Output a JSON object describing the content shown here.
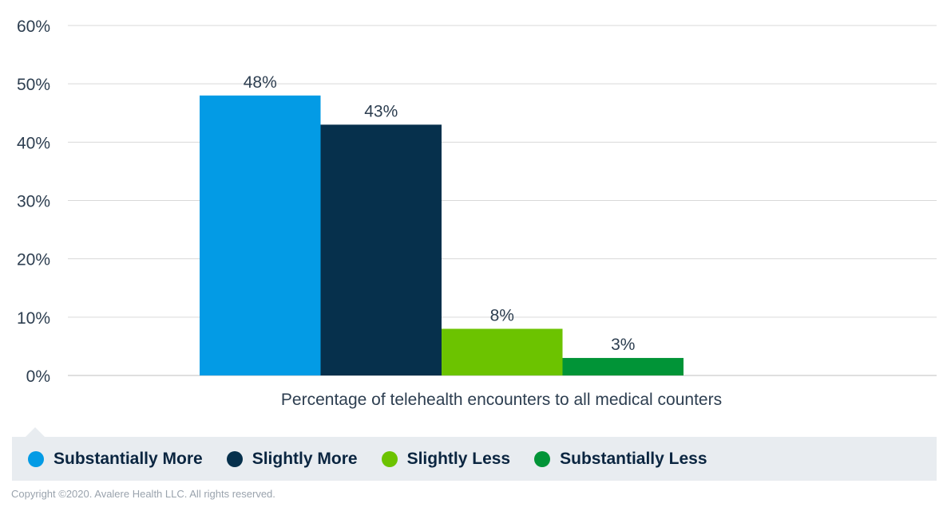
{
  "chart_data": {
    "type": "bar",
    "xlabel": "Percentage of telehealth encounters to all medical counters",
    "ylim": [
      0,
      60
    ],
    "yticks": [
      "0%",
      "10%",
      "20%",
      "30%",
      "40%",
      "50%",
      "60%"
    ],
    "grid": true,
    "legend_position": "bottom",
    "series": [
      {
        "name": "Substantially More",
        "value": 48,
        "label": "48%",
        "color": "#039be5"
      },
      {
        "name": "Slightly More",
        "value": 43,
        "label": "43%",
        "color": "#06304c"
      },
      {
        "name": "Slightly Less",
        "value": 8,
        "label": "8%",
        "color": "#6cc300"
      },
      {
        "name": "Substantially Less",
        "value": 3,
        "label": "3%",
        "color": "#019437"
      }
    ]
  },
  "footer": {
    "copyright": "Copyright ©2020. Avalere Health LLC. All rights reserved."
  }
}
